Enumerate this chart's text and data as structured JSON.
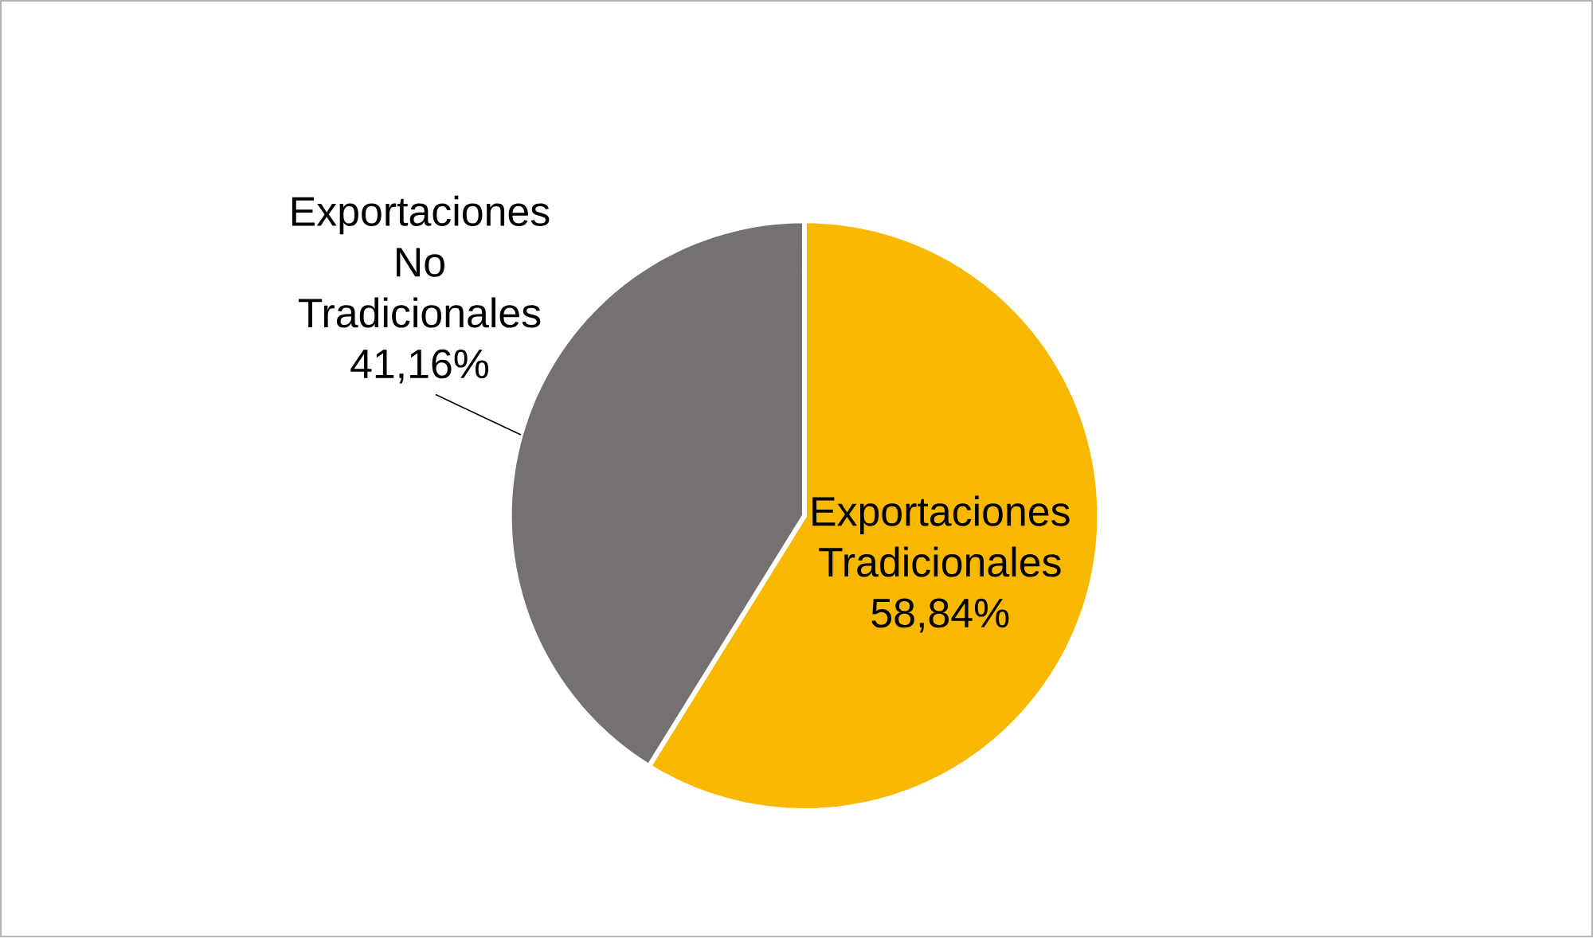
{
  "chart_data": {
    "type": "pie",
    "categories": [
      "Exportaciones Tradicionales",
      "Exportaciones No Tradicionales"
    ],
    "values": [
      58.84,
      41.16
    ],
    "colors": [
      "#f9b800",
      "#767171"
    ],
    "value_labels": [
      "58,84%",
      "41,16%"
    ]
  }
}
